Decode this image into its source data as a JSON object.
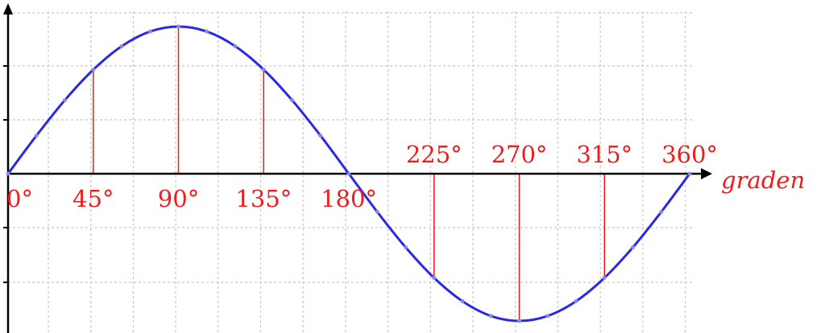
{
  "chart_data": {
    "type": "line",
    "title": "",
    "xlabel": "graden",
    "ylabel": "",
    "x": [
      0,
      15,
      30,
      45,
      60,
      75,
      90,
      105,
      120,
      135,
      150,
      165,
      180,
      195,
      210,
      225,
      240,
      255,
      270,
      285,
      300,
      315,
      330,
      345,
      360
    ],
    "series": [
      {
        "values": [
          0,
          0.259,
          0.5,
          0.707,
          0.866,
          0.966,
          1,
          0.966,
          0.866,
          0.707,
          0.5,
          0.259,
          0,
          -0.259,
          -0.5,
          -0.707,
          -0.866,
          -0.966,
          -1,
          -0.966,
          -0.866,
          -0.707,
          -0.5,
          -0.259,
          0
        ]
      }
    ],
    "xlim": [
      0,
      360
    ],
    "ylim": [
      -1,
      1
    ],
    "grid": true,
    "markers": [
      0,
      45,
      90,
      135,
      180,
      225,
      270,
      315,
      360
    ],
    "tick_labels": [
      {
        "x": 0,
        "text": "0°",
        "side": "below"
      },
      {
        "x": 45,
        "text": "45°",
        "side": "below"
      },
      {
        "x": 90,
        "text": "90°",
        "side": "below"
      },
      {
        "x": 135,
        "text": "135°",
        "side": "below"
      },
      {
        "x": 180,
        "text": "180°",
        "side": "below"
      },
      {
        "x": 225,
        "text": "225°",
        "side": "above"
      },
      {
        "x": 270,
        "text": "270°",
        "side": "above"
      },
      {
        "x": 315,
        "text": "315°",
        "side": "above"
      },
      {
        "x": 360,
        "text": "360°",
        "side": "above"
      }
    ],
    "colors": {
      "curve": "#2a2ae6",
      "marker": "#ee1c1c",
      "label": "#ee1c1c",
      "grid": "#c8c8c8",
      "axis": "#000000"
    }
  }
}
